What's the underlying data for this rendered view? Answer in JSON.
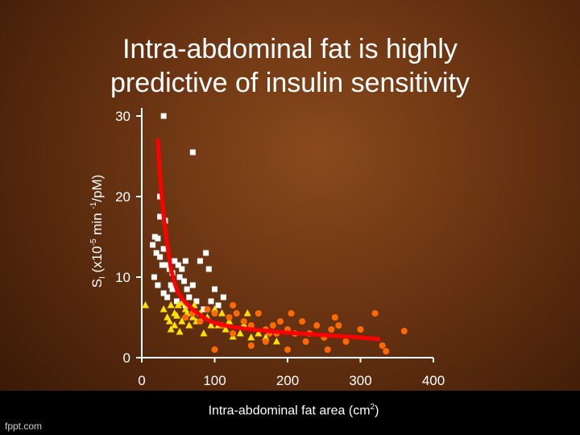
{
  "title": {
    "line1": "Intra-abdominal fat is highly",
    "line2": "predictive of insulin sensitivity"
  },
  "footer": {
    "brand": "fppt.com"
  },
  "chart_data": {
    "type": "scatter",
    "title": "Intra-abdominal fat is highly predictive of insulin sensitivity",
    "xlabel": "Intra-abdominal fat area (cm2)",
    "ylabel": "SI (x10-5 min -1/pM)",
    "xlabel_parts": {
      "main": "Intra-abdominal fat area (cm",
      "sup": "2",
      "tail": ")"
    },
    "ylabel_parts": {
      "s": "S",
      "sub": "I",
      "mid": " (x10",
      "sup1": "-5",
      "mid2": " min ",
      "sup2": "-1",
      "tail": "/pM)"
    },
    "xlim": [
      0,
      400
    ],
    "ylim": [
      0,
      30
    ],
    "xticks": [
      0,
      100,
      200,
      300,
      400
    ],
    "yticks": [
      0,
      10,
      20,
      30
    ],
    "grid": false,
    "series": [
      {
        "marker": "square",
        "color": "#ffffff",
        "points": [
          [
            30,
            30
          ],
          [
            70,
            25.5
          ],
          [
            25,
            20
          ],
          [
            25,
            17.5
          ],
          [
            32,
            17
          ],
          [
            15,
            14
          ],
          [
            18,
            15
          ],
          [
            22,
            14.8
          ],
          [
            20,
            13
          ],
          [
            30,
            13.5
          ],
          [
            25,
            12.5
          ],
          [
            28,
            11.5
          ],
          [
            17,
            10
          ],
          [
            22,
            9
          ],
          [
            38,
            11
          ],
          [
            30,
            8
          ],
          [
            35,
            7.5
          ],
          [
            45,
            12
          ],
          [
            50,
            11.5
          ],
          [
            55,
            11
          ],
          [
            58,
            9.5
          ],
          [
            60,
            12
          ],
          [
            62,
            8.5
          ],
          [
            70,
            9
          ],
          [
            75,
            7
          ],
          [
            88,
            13
          ],
          [
            80,
            12
          ],
          [
            52,
            10
          ],
          [
            42,
            10.5
          ],
          [
            48,
            7
          ],
          [
            40,
            9
          ],
          [
            65,
            7.5
          ],
          [
            100,
            8.5
          ],
          [
            95,
            7
          ],
          [
            105,
            6.5
          ],
          [
            85,
            6
          ],
          [
            112,
            7.5
          ],
          [
            35,
            11.5
          ],
          [
            60,
            6.5
          ],
          [
            42,
            8.5
          ],
          [
            92,
            11
          ]
        ]
      },
      {
        "marker": "triangle",
        "color": "#ffe100",
        "points": [
          [
            5,
            6.5
          ],
          [
            30,
            6
          ],
          [
            40,
            6.5
          ],
          [
            45,
            5.5
          ],
          [
            50,
            6.5
          ],
          [
            55,
            6.8
          ],
          [
            60,
            6
          ],
          [
            70,
            5
          ],
          [
            80,
            5.5
          ],
          [
            90,
            5
          ],
          [
            100,
            6
          ],
          [
            110,
            5.5
          ],
          [
            45,
            4
          ],
          [
            35,
            5
          ],
          [
            40,
            3.5
          ],
          [
            55,
            4.5
          ],
          [
            65,
            4
          ],
          [
            75,
            4.5
          ],
          [
            85,
            3
          ],
          [
            95,
            4
          ],
          [
            105,
            4
          ],
          [
            115,
            3.5
          ],
          [
            120,
            4.5
          ],
          [
            135,
            3
          ],
          [
            150,
            2.5
          ],
          [
            160,
            3
          ],
          [
            170,
            2.5
          ],
          [
            185,
            2
          ],
          [
            48,
            5.2
          ],
          [
            62,
            5.5
          ],
          [
            52,
            3.2
          ],
          [
            72,
            6.5
          ],
          [
            125,
            2.6
          ],
          [
            140,
            4.1
          ],
          [
            38,
            4.5
          ],
          [
            145,
            5.5
          ]
        ]
      },
      {
        "marker": "circle",
        "color": "#ff6a00",
        "points": [
          [
            60,
            5
          ],
          [
            70,
            5.5
          ],
          [
            80,
            4.5
          ],
          [
            90,
            6
          ],
          [
            100,
            5.5
          ],
          [
            110,
            4
          ],
          [
            120,
            5
          ],
          [
            125,
            6.5
          ],
          [
            130,
            5.5
          ],
          [
            140,
            4.5
          ],
          [
            150,
            4
          ],
          [
            160,
            5.5
          ],
          [
            170,
            3.5
          ],
          [
            180,
            4
          ],
          [
            190,
            4.5
          ],
          [
            200,
            3.5
          ],
          [
            210,
            3
          ],
          [
            220,
            4.5
          ],
          [
            230,
            3
          ],
          [
            240,
            4
          ],
          [
            250,
            2.5
          ],
          [
            260,
            3.5
          ],
          [
            270,
            4
          ],
          [
            280,
            2
          ],
          [
            300,
            3.5
          ],
          [
            320,
            5.5
          ],
          [
            360,
            3.3
          ],
          [
            330,
            1.5
          ],
          [
            335,
            0.8
          ],
          [
            255,
            1
          ],
          [
            200,
            1
          ],
          [
            150,
            1.5
          ],
          [
            100,
            1
          ],
          [
            125,
            3
          ],
          [
            175,
            3
          ],
          [
            205,
            5.5
          ],
          [
            265,
            5
          ],
          [
            170,
            2
          ],
          [
            185,
            3
          ],
          [
            225,
            2
          ]
        ]
      }
    ],
    "fit_curve": {
      "color": "#ff0000",
      "points": [
        [
          22,
          27
        ],
        [
          25,
          22.5
        ],
        [
          30,
          17.5
        ],
        [
          35,
          14
        ],
        [
          40,
          11
        ],
        [
          45,
          9.3
        ],
        [
          50,
          8
        ],
        [
          60,
          6.8
        ],
        [
          70,
          6
        ],
        [
          80,
          5.3
        ],
        [
          90,
          4.7
        ],
        [
          100,
          4.3
        ],
        [
          125,
          3.8
        ],
        [
          150,
          3.5
        ],
        [
          175,
          3.3
        ],
        [
          200,
          3.1
        ],
        [
          250,
          2.8
        ],
        [
          300,
          2.5
        ],
        [
          325,
          2.3
        ]
      ]
    }
  }
}
